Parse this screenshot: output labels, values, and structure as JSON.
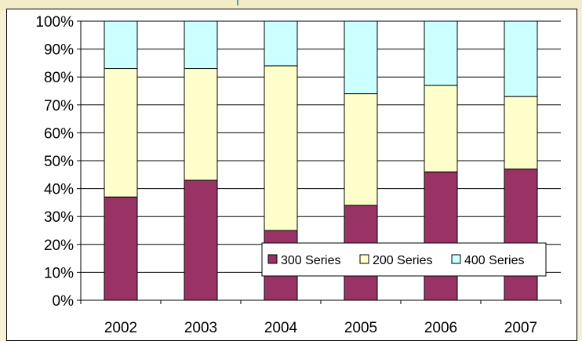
{
  "chart_data": {
    "type": "bar",
    "stacked": true,
    "percent_stacked": true,
    "categories": [
      "2002",
      "2003",
      "2004",
      "2005",
      "2006",
      "2007"
    ],
    "series": [
      {
        "name": "300 Series",
        "color": "#993366",
        "values": [
          37,
          43,
          25,
          34,
          46,
          47
        ]
      },
      {
        "name": "200 Series",
        "color": "#ffffcc",
        "values": [
          46,
          40,
          59,
          40,
          31,
          26
        ]
      },
      {
        "name": "400 Series",
        "color": "#ccffff",
        "values": [
          17,
          17,
          16,
          26,
          23,
          27
        ]
      }
    ],
    "y_ticks": [
      "0%",
      "10%",
      "20%",
      "30%",
      "40%",
      "50%",
      "60%",
      "70%",
      "80%",
      "90%",
      "100%"
    ],
    "ylim": [
      0,
      100
    ],
    "grid": true,
    "legend": "bottom-right"
  }
}
